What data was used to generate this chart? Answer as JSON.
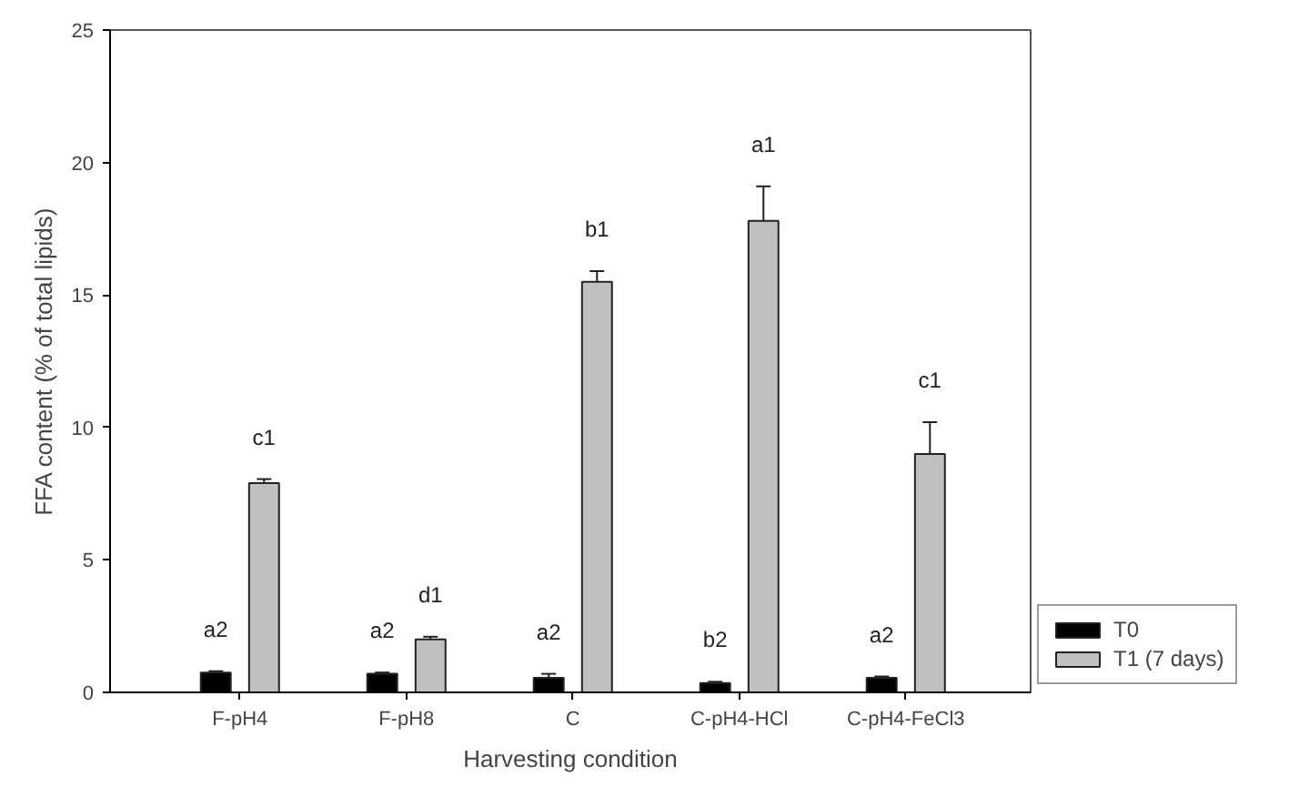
{
  "chart_data": {
    "type": "bar",
    "xlabel": "Harvesting condition",
    "ylabel": "FFA content (% of total lipids)",
    "categories": [
      "F-pH4",
      "F-pH8",
      "C",
      "C-pH4-HCl",
      "C-pH4-FeCl3"
    ],
    "series": [
      {
        "name": "T0",
        "color": "#000000",
        "values": [
          0.75,
          0.7,
          0.55,
          0.35,
          0.55
        ],
        "errors": [
          0.05,
          0.05,
          0.15,
          0.05,
          0.05
        ],
        "value_labels": [
          "a2",
          "a2",
          "a2",
          "b2",
          "a2"
        ]
      },
      {
        "name": "T1 (7 days)",
        "color": "#c0c0c0",
        "values": [
          7.9,
          2.0,
          15.5,
          17.8,
          9.0
        ],
        "errors": [
          0.15,
          0.1,
          0.4,
          1.3,
          1.2
        ],
        "value_labels": [
          "c1",
          "d1",
          "b1",
          "a1",
          "c1"
        ]
      }
    ],
    "ylim": [
      0,
      25
    ],
    "yticks": [
      0,
      5,
      10,
      15,
      20,
      25
    ],
    "grid": false,
    "legend": "bottom right"
  }
}
